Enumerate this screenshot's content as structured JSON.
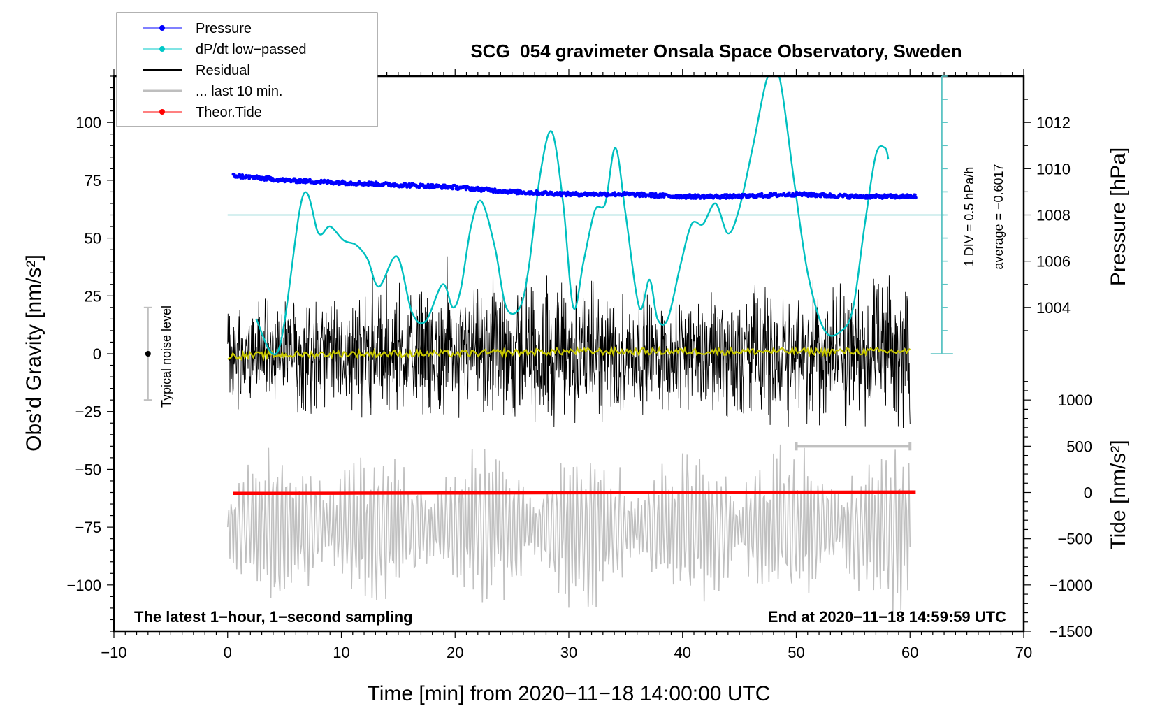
{
  "chart_data": {
    "type": "line",
    "title": "SCG_054 gravimeter Onsala Space Observatory, Sweden",
    "xlabel": "Time [min] from 2020−11−18 14:00:00 UTC",
    "ylabel_left": "Obs’d Gravity [nm/s²]",
    "ylabel_right_top": "Pressure [hPa]",
    "ylabel_right_bottom": "Tide [nm/s²]",
    "xlim": [
      -10,
      70
    ],
    "ylim_left": [
      -120,
      120
    ],
    "x_ticks": [
      "−10",
      "0",
      "10",
      "20",
      "30",
      "40",
      "50",
      "60",
      "70"
    ],
    "x_tick_values": [
      -10,
      0,
      10,
      20,
      30,
      40,
      50,
      60,
      70
    ],
    "y_left_ticks": [
      "100",
      "75",
      "50",
      "25",
      "0",
      "−25",
      "−50",
      "−75",
      "−100"
    ],
    "y_left_tick_values": [
      100,
      75,
      50,
      25,
      0,
      -25,
      -50,
      -75,
      -100
    ],
    "pressure_axis": {
      "ticks": [
        "1012",
        "1010",
        "1008",
        "1006",
        "1004"
      ],
      "tick_values": [
        1012,
        1010,
        1008,
        1006,
        1004
      ],
      "range": [
        1002.0,
        1014.0
      ]
    },
    "tide_axis": {
      "ticks": [
        "1000",
        "500",
        "0",
        "−500",
        "−1000",
        "−1500"
      ],
      "tick_values": [
        1000,
        500,
        0,
        -500,
        -1000,
        -1500
      ],
      "range": [
        -1500,
        1500
      ]
    },
    "dpdt_scale": {
      "div_label": "1 DIV = 0.5 hPa/h",
      "average_label": "average = −0.6017",
      "average": -0.6017,
      "div_hpa_per_h": 0.5,
      "reference_level_gravity_units": 60
    },
    "legend": {
      "placement": "top-left",
      "entries": [
        {
          "label": "Pressure",
          "color": "#0000ff",
          "marker": "dot"
        },
        {
          "label": "dP/dt low−passed",
          "color": "#00c8c8",
          "marker": "dot"
        },
        {
          "label": "Residual",
          "color": "#000000",
          "marker": "none"
        },
        {
          "label": "... last 10 min.",
          "color": "#bebebe",
          "marker": "none"
        },
        {
          "label": "Theor.Tide",
          "color": "#ff0000",
          "marker": "dot"
        }
      ]
    },
    "annotations": {
      "bottom_left": "The latest 1−hour, 1−second sampling",
      "bottom_right": "End at 2020−11−18 14:59:59 UTC",
      "noise_label": "Typical noise level",
      "noise_level": {
        "x": -7,
        "center": 0,
        "low": -20,
        "high": 20
      }
    },
    "series": [
      {
        "name": "Pressure",
        "unit": "hPa",
        "color": "#0000ff",
        "x": [
          0.5,
          5,
          10,
          15,
          20,
          25,
          30,
          35,
          40,
          45,
          50,
          55,
          60.5
        ],
        "values": [
          1009.7,
          1009.5,
          1009.4,
          1009.3,
          1009.2,
          1009.0,
          1008.9,
          1008.9,
          1008.8,
          1008.8,
          1008.9,
          1008.8,
          1008.8
        ]
      },
      {
        "name": "dP/dt low-passed",
        "unit": "gravity-axis units",
        "color": "#00c0c0",
        "x": [
          2.5,
          4.5,
          6.6,
          8.0,
          9.0,
          10.2,
          11.3,
          12.3,
          13.3,
          14.9,
          16.2,
          17.4,
          18.9,
          19.8,
          20.5,
          21.4,
          22.3,
          23.5,
          24.5,
          25.7,
          26.5,
          27.5,
          28.5,
          29.5,
          30.4,
          31.3,
          32.3,
          33.2,
          34.1,
          35.0,
          36.2,
          37.1,
          37.8,
          38.7,
          39.8,
          40.8,
          41.8,
          42.9,
          44.0,
          45.0,
          46.2,
          47.5,
          48.5,
          49.8,
          51.0,
          52.5,
          54.0,
          55.0,
          56.0,
          57.0,
          57.8,
          58.1
        ],
        "values": [
          15,
          2,
          68,
          52,
          55,
          49,
          47,
          41,
          29,
          42,
          18,
          14,
          30,
          20,
          28,
          55,
          66,
          46,
          20,
          20,
          38,
          78,
          96,
          65,
          20,
          40,
          62,
          65,
          89,
          60,
          20,
          32,
          15,
          15,
          38,
          56,
          56,
          65,
          52,
          63,
          90,
          120,
          120,
          75,
          35,
          10,
          10,
          20,
          55,
          86,
          89,
          84
        ]
      },
      {
        "name": "Residual",
        "unit": "nm/s²",
        "color": "#000000",
        "description": "dense 1-second residual trace, amplitude roughly ±35 nm/s², extremes about ±45",
        "x_range": [
          0,
          60
        ],
        "envelope": [
          25,
          30,
          28,
          32,
          30,
          35,
          38,
          30,
          28,
          32,
          34,
          36
        ],
        "envelope_x": [
          0,
          5,
          10,
          15,
          20,
          25,
          30,
          35,
          40,
          45,
          50,
          55
        ]
      },
      {
        "name": "Residual smoothed",
        "unit": "nm/s²",
        "color": "#c8c800",
        "x": [
          0,
          10,
          20,
          30,
          40,
          50,
          60
        ],
        "values": [
          -1,
          0,
          0,
          1,
          1,
          1,
          1
        ]
      },
      {
        "name": "... last 10 min.",
        "unit": "nm/s² (scaled)",
        "color": "#bebebe",
        "description": "last 10 minutes of residual replotted at stretched time scale below main trace, centered near -75",
        "x_range": [
          0,
          60
        ],
        "center": -75,
        "amplitude": 35,
        "bracket_x": [
          50,
          60
        ],
        "bracket_y": -40
      },
      {
        "name": "Theor.Tide",
        "unit": "nm/s²",
        "color": "#ff0000",
        "x": [
          0.5,
          10,
          20,
          30,
          40,
          50,
          60.5
        ],
        "values": [
          -10,
          -8,
          -5,
          -3,
          0,
          3,
          5
        ]
      }
    ],
    "grid": false
  }
}
